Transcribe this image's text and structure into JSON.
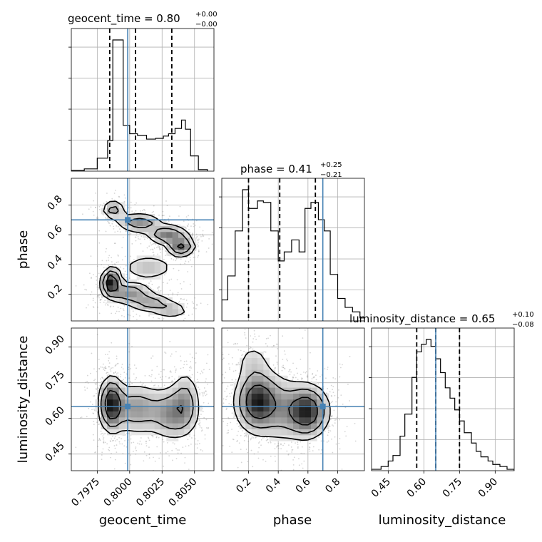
{
  "chart_data": {
    "type": "corner",
    "parameters": [
      "geocent_time",
      "phase",
      "luminosity_distance"
    ],
    "truths": {
      "geocent_time": 0.79985,
      "phase": 0.7,
      "luminosity_distance": 0.65
    },
    "colors": {
      "truth": "#4682b4",
      "histogram": "#000000",
      "contour": "#000000",
      "points": "#888888"
    },
    "titles": {
      "geocent_time": {
        "name": "geocent_time",
        "value": "0.80",
        "upper": "+0.00",
        "lower": "−0.00"
      },
      "phase": {
        "name": "phase",
        "value": "0.41",
        "upper": "+0.25",
        "lower": "−0.21"
      },
      "luminosity_distance": {
        "name": "luminosity_distance",
        "value": "0.65",
        "upper": "+0.10",
        "lower": "−0.08"
      }
    },
    "ranges": {
      "geocent_time": [
        0.7955,
        0.8065
      ],
      "phase": [
        0.02,
        0.98
      ],
      "luminosity_distance": [
        0.38,
        0.98
      ]
    },
    "ticks": {
      "geocent_time": {
        "values": [
          0.7975,
          0.8,
          0.8025,
          0.805
        ],
        "labels": [
          "0.7975",
          "0.8000",
          "0.8025",
          "0.8050"
        ]
      },
      "phase": {
        "values": [
          0.2,
          0.4,
          0.6,
          0.8
        ],
        "labels": [
          "0.2",
          "0.4",
          "0.6",
          "0.8"
        ]
      },
      "luminosity_distance": {
        "values": [
          0.45,
          0.6,
          0.75,
          0.9
        ],
        "labels": [
          "0.45",
          "0.60",
          "0.75",
          "0.90"
        ]
      }
    },
    "histograms": {
      "geocent_time": {
        "quantiles": [
          0.79846,
          0.80045,
          0.80325
        ],
        "bin_edges": [
          0.7955,
          0.7965,
          0.7975,
          0.7983,
          0.7987,
          0.7995,
          0.8,
          0.8006,
          0.8013,
          0.802,
          0.8026,
          0.803,
          0.8035,
          0.804,
          0.8043,
          0.8047,
          0.8053,
          0.806
        ],
        "counts": [
          1,
          3,
          17,
          40,
          172,
          60,
          49,
          47,
          42,
          43,
          46,
          49,
          56,
          67,
          55,
          20,
          2
        ]
      },
      "phase": {
        "quantiles": [
          0.2,
          0.41,
          0.65
        ],
        "bin_edges": [
          0.02,
          0.06,
          0.11,
          0.16,
          0.2,
          0.26,
          0.3,
          0.35,
          0.4,
          0.44,
          0.49,
          0.54,
          0.58,
          0.62,
          0.67,
          0.71,
          0.75,
          0.8,
          0.85,
          0.9,
          0.95,
          0.98
        ],
        "counts": [
          28,
          60,
          120,
          175,
          150,
          160,
          158,
          120,
          80,
          92,
          108,
          92,
          150,
          158,
          135,
          120,
          62,
          30,
          18,
          12,
          4
        ]
      },
      "luminosity_distance": {
        "quantiles": [
          0.57,
          0.65,
          0.75
        ],
        "bin_edges": [
          0.38,
          0.42,
          0.45,
          0.47,
          0.5,
          0.52,
          0.55,
          0.57,
          0.59,
          0.61,
          0.63,
          0.65,
          0.67,
          0.69,
          0.71,
          0.73,
          0.75,
          0.77,
          0.8,
          0.82,
          0.84,
          0.87,
          0.89,
          0.92,
          0.95,
          0.98
        ],
        "counts": [
          2,
          6,
          14,
          22,
          50,
          82,
          135,
          172,
          183,
          190,
          180,
          162,
          142,
          120,
          105,
          88,
          72,
          55,
          40,
          28,
          20,
          14,
          9,
          6,
          2
        ]
      }
    },
    "pairs": [
      {
        "x": "geocent_time",
        "y": "phase",
        "blobs": [
          {
            "cx": 0.79858,
            "cy": 0.28,
            "sx": 0.0004,
            "sy": 0.05,
            "w": 1.0
          },
          {
            "cx": 0.79995,
            "cy": 0.21,
            "sx": 0.001,
            "sy": 0.04,
            "w": 0.5
          },
          {
            "cx": 0.80165,
            "cy": 0.14,
            "sx": 0.001,
            "sy": 0.035,
            "w": 0.4
          },
          {
            "cx": 0.80325,
            "cy": 0.09,
            "sx": 0.0008,
            "sy": 0.03,
            "w": 0.3
          },
          {
            "cx": 0.79875,
            "cy": 0.77,
            "sx": 0.0005,
            "sy": 0.035,
            "w": 0.45
          },
          {
            "cx": 0.80075,
            "cy": 0.68,
            "sx": 0.001,
            "sy": 0.035,
            "w": 0.5
          },
          {
            "cx": 0.80295,
            "cy": 0.6,
            "sx": 0.0009,
            "sy": 0.035,
            "w": 0.6
          },
          {
            "cx": 0.80395,
            "cy": 0.52,
            "sx": 0.0006,
            "sy": 0.035,
            "w": 0.7
          },
          {
            "cx": 0.80145,
            "cy": 0.38,
            "sx": 0.0012,
            "sy": 0.05,
            "w": 0.3
          }
        ]
      },
      {
        "x": "geocent_time",
        "y": "luminosity_distance",
        "blobs": [
          {
            "cx": 0.7986,
            "cy": 0.66,
            "sx": 0.0005,
            "sy": 0.06,
            "w": 1.0
          },
          {
            "cx": 0.8005,
            "cy": 0.64,
            "sx": 0.0012,
            "sy": 0.06,
            "w": 0.5
          },
          {
            "cx": 0.80335,
            "cy": 0.62,
            "sx": 0.001,
            "sy": 0.06,
            "w": 0.55
          },
          {
            "cx": 0.8043,
            "cy": 0.68,
            "sx": 0.0006,
            "sy": 0.07,
            "w": 0.35
          }
        ]
      },
      {
        "x": "phase",
        "y": "luminosity_distance",
        "blobs": [
          {
            "cx": 0.26,
            "cy": 0.67,
            "sx": 0.08,
            "sy": 0.07,
            "w": 1.0
          },
          {
            "cx": 0.59,
            "cy": 0.63,
            "sx": 0.08,
            "sy": 0.06,
            "w": 1.0
          },
          {
            "cx": 0.42,
            "cy": 0.64,
            "sx": 0.08,
            "sy": 0.08,
            "w": 0.35
          },
          {
            "cx": 0.23,
            "cy": 0.84,
            "sx": 0.07,
            "sy": 0.05,
            "w": 0.2
          }
        ]
      }
    ]
  }
}
